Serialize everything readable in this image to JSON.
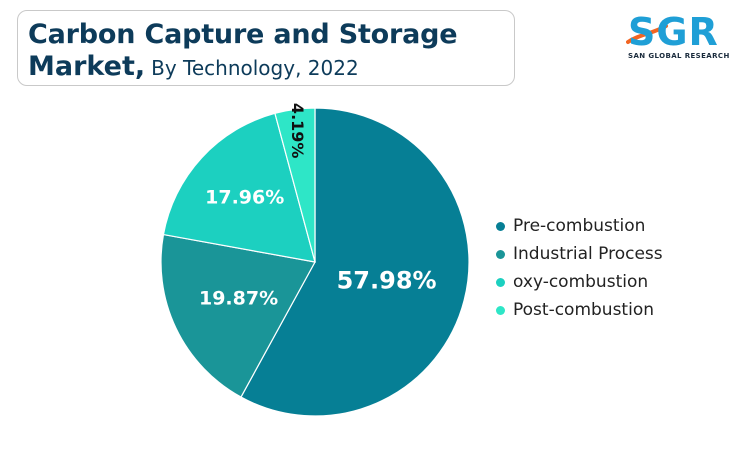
{
  "title": {
    "line1": "Carbon Capture and Storage",
    "line2_bold": "Market,",
    "line2_light": "By Technology, 2022"
  },
  "logo": {
    "letters": "SGR",
    "tagline": "SAN GLOBAL RESEARCH",
    "colors": {
      "letters": "#1f9fd6",
      "swoosh": "#f26522"
    }
  },
  "chart_data": {
    "type": "pie",
    "start_angle_deg": 0,
    "direction": "clockwise",
    "slices": [
      {
        "label": "Pre-combustion",
        "value": 57.98,
        "display": "57.98%",
        "color": "#067f95"
      },
      {
        "label": "Industrial Process",
        "value": 19.87,
        "display": "19.87%",
        "color": "#1a9598"
      },
      {
        "label": "oxy-combustion",
        "value": 17.96,
        "display": "17.96%",
        "color": "#1cd0c0"
      },
      {
        "label": "Post-combustion",
        "value": 4.19,
        "display": "4.19%",
        "color": "#2ee6c7"
      }
    ],
    "legend_position": "right"
  }
}
